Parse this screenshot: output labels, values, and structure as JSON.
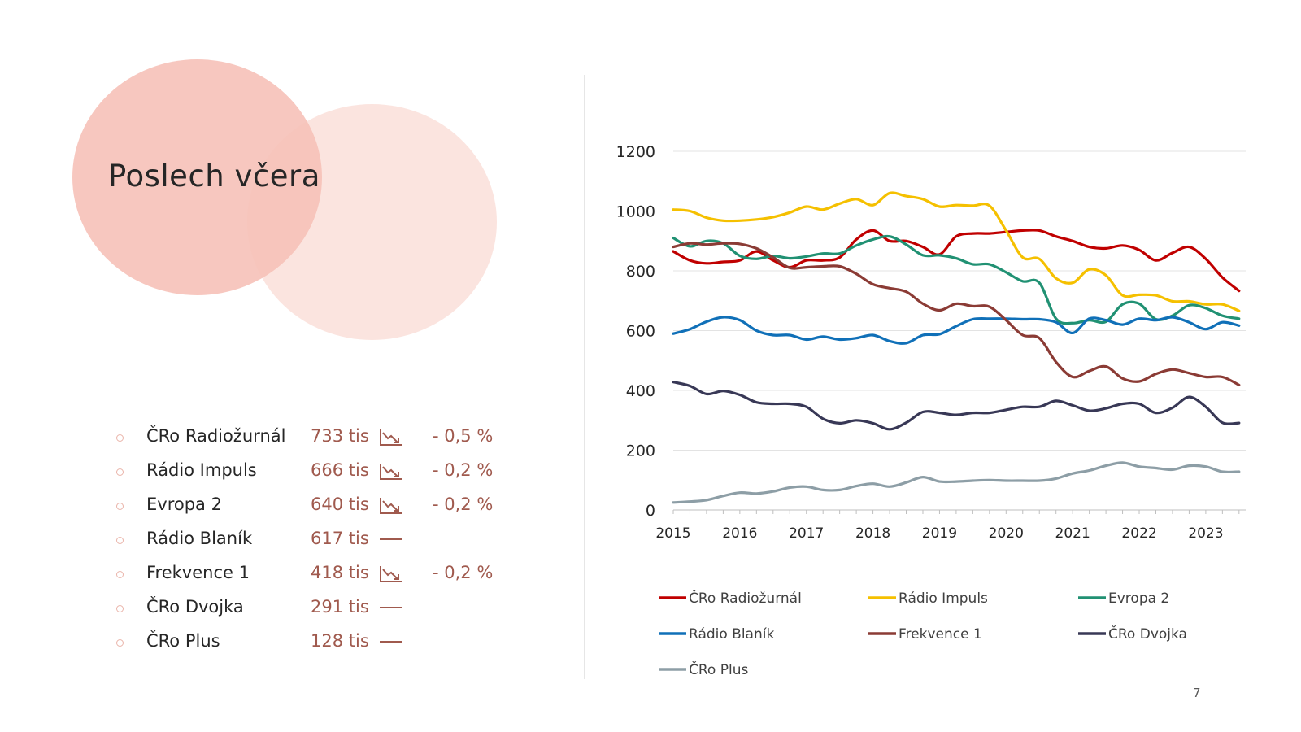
{
  "slide": {
    "title": "Poslech včera",
    "page_number": "7"
  },
  "stations": [
    {
      "name": "ČRo Radiožurnál",
      "value": "733 tis",
      "trend": "down",
      "change": "- 0,5 %"
    },
    {
      "name": "Rádio Impuls",
      "value": "666 tis",
      "trend": "down",
      "change": "- 0,2 %"
    },
    {
      "name": "Evropa 2",
      "value": "640 tis",
      "trend": "down",
      "change": "- 0,2 %"
    },
    {
      "name": "Rádio Blaník",
      "value": "617 tis",
      "trend": "flat",
      "change": ""
    },
    {
      "name": "Frekvence 1",
      "value": "418 tis",
      "trend": "down",
      "change": "- 0,2 %"
    },
    {
      "name": "ČRo Dvojka",
      "value": "291 tis",
      "trend": "flat",
      "change": ""
    },
    {
      "name": "ČRo Plus",
      "value": "128 tis",
      "trend": "flat",
      "change": ""
    }
  ],
  "colors": {
    "accent": "#a05a4e",
    "circle_left": "#f4b2a6",
    "circle_right": "#f7c4b8"
  },
  "chart_data": {
    "type": "line",
    "title": "",
    "xlabel": "",
    "ylabel": "",
    "ylim": [
      0,
      1200
    ],
    "yticks": [
      0,
      200,
      400,
      600,
      800,
      1000,
      1200
    ],
    "xlim": [
      2015,
      2023.6
    ],
    "xticks": [
      2015,
      2016,
      2017,
      2018,
      2019,
      2020,
      2021,
      2022,
      2023
    ],
    "grid": true,
    "legend_position": "bottom",
    "x": [
      2015,
      2015.25,
      2015.5,
      2015.75,
      2016,
      2016.25,
      2016.5,
      2016.75,
      2017,
      2017.25,
      2017.5,
      2017.75,
      2018,
      2018.25,
      2018.5,
      2018.75,
      2019,
      2019.25,
      2019.5,
      2019.75,
      2020,
      2020.25,
      2020.5,
      2020.75,
      2021,
      2021.25,
      2021.5,
      2021.75,
      2022,
      2022.25,
      2022.5,
      2022.75,
      2023,
      2023.25,
      2023.5
    ],
    "series": [
      {
        "name": "ČRo Radiožurnál",
        "color": "#c00000",
        "values": [
          865,
          835,
          825,
          830,
          835,
          865,
          835,
          812,
          835,
          835,
          845,
          905,
          935,
          900,
          900,
          880,
          855,
          915,
          925,
          925,
          930,
          935,
          935,
          915,
          900,
          880,
          875,
          885,
          870,
          835,
          860,
          880,
          840,
          778,
          733
        ]
      },
      {
        "name": "Rádio Impuls",
        "color": "#f5c000",
        "values": [
          1005,
          1000,
          978,
          968,
          968,
          972,
          980,
          995,
          1015,
          1005,
          1025,
          1040,
          1020,
          1060,
          1050,
          1040,
          1015,
          1020,
          1018,
          1018,
          935,
          845,
          840,
          775,
          760,
          805,
          785,
          718,
          720,
          718,
          698,
          698,
          688,
          688,
          666
        ]
      },
      {
        "name": "Evropa 2",
        "color": "#219173",
        "values": [
          910,
          882,
          900,
          892,
          850,
          840,
          850,
          842,
          848,
          858,
          858,
          885,
          905,
          915,
          888,
          852,
          852,
          842,
          822,
          822,
          795,
          765,
          760,
          640,
          625,
          635,
          630,
          688,
          690,
          638,
          650,
          685,
          675,
          650,
          640
        ]
      },
      {
        "name": "Rádio Blaník",
        "color": "#1070b8",
        "values": [
          590,
          605,
          630,
          645,
          635,
          600,
          585,
          585,
          570,
          580,
          570,
          575,
          585,
          565,
          558,
          585,
          588,
          615,
          638,
          640,
          640,
          638,
          638,
          628,
          592,
          640,
          635,
          620,
          640,
          635,
          645,
          628,
          605,
          628,
          617
        ]
      },
      {
        "name": "Frekvence 1",
        "color": "#8b3b35",
        "values": [
          880,
          892,
          888,
          892,
          890,
          875,
          845,
          810,
          812,
          815,
          815,
          790,
          755,
          742,
          730,
          690,
          668,
          690,
          682,
          680,
          635,
          585,
          575,
          495,
          445,
          465,
          480,
          440,
          430,
          455,
          470,
          458,
          445,
          445,
          418
        ]
      },
      {
        "name": "ČRo Dvojka",
        "color": "#383856",
        "values": [
          428,
          415,
          388,
          398,
          385,
          360,
          355,
          355,
          345,
          305,
          290,
          300,
          290,
          270,
          292,
          328,
          325,
          318,
          325,
          325,
          335,
          345,
          345,
          365,
          350,
          332,
          340,
          355,
          355,
          325,
          342,
          378,
          345,
          292,
          291
        ]
      },
      {
        "name": "ČRo Plus",
        "color": "#8d9ea6",
        "values": [
          25,
          28,
          33,
          47,
          58,
          55,
          62,
          75,
          78,
          67,
          67,
          80,
          88,
          78,
          92,
          110,
          95,
          95,
          98,
          100,
          98,
          98,
          98,
          105,
          122,
          132,
          148,
          158,
          145,
          140,
          135,
          148,
          145,
          128,
          128
        ]
      }
    ]
  }
}
